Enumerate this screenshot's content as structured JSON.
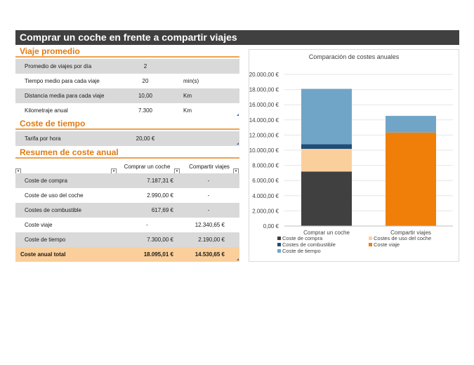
{
  "title": "Comprar un coche en frente a compartir viajes",
  "viaje": {
    "header": "Viaje promedio",
    "rows": [
      {
        "label": "Promedio de viajes por día",
        "value": "2",
        "unit": ""
      },
      {
        "label": "Tiempo medio para cada viaje",
        "value": "20",
        "unit": "min(s)"
      },
      {
        "label": "Distancia media para cada viaje",
        "value": "10,00",
        "unit": "Km"
      },
      {
        "label": "Kilometraje anual",
        "value": "7.300",
        "unit": "Km"
      }
    ]
  },
  "tiempo": {
    "header": "Coste de tiempo",
    "rows": [
      {
        "label": "Tarifa por hora",
        "value": "20,00 €"
      }
    ]
  },
  "resumen": {
    "header": "Resumen de coste anual",
    "col_a": "Comprar un coche",
    "col_b": "Compartir viajes",
    "rows": [
      {
        "label": "Coste de compra",
        "a": "7.187,31 €",
        "b": "-"
      },
      {
        "label": "Coste de uso del coche",
        "a": "2.990,00 €",
        "b": "-"
      },
      {
        "label": "Costes de combustible",
        "a": "617,69 €",
        "b": "-"
      },
      {
        "label": "Coste viaje",
        "a": "-",
        "b": "12.340,65 €"
      },
      {
        "label": "Coste de tiempo",
        "a": "7.300,00 €",
        "b": "2.190,00 €"
      }
    ],
    "total": {
      "label": "Coste anual total",
      "a": "18.095,01 €",
      "b": "14.530,65 €"
    }
  },
  "chart_data": {
    "type": "bar",
    "stacked": true,
    "title": "Comparación de costes anuales",
    "categories": [
      "Comprar un coche",
      "Compartir viajes"
    ],
    "series": [
      {
        "name": "Coste de compra",
        "color": "#404040",
        "values": [
          7187.31,
          0
        ]
      },
      {
        "name": "Costes de uso del coche",
        "color": "#fbcf9b",
        "values": [
          2990.0,
          0
        ]
      },
      {
        "name": "Costes de combustible",
        "color": "#1f4e79",
        "values": [
          617.69,
          0
        ]
      },
      {
        "name": "Coste viaje",
        "color": "#f07f09",
        "values": [
          0,
          12340.65
        ]
      },
      {
        "name": "Coste de tiempo",
        "color": "#71a5c8",
        "values": [
          7300.0,
          2190.0
        ]
      }
    ],
    "yticks": [
      "0,00 €",
      "2.000,00 €",
      "4.000,00 €",
      "6.000,00 €",
      "8.000,00 €",
      "10.000,00 €",
      "12.000,00 €",
      "14.000,00 €",
      "16.000,00 €",
      "18.000,00 €",
      "20.000,00 €"
    ],
    "ylim": [
      0,
      20000
    ],
    "legend": "bottom"
  }
}
